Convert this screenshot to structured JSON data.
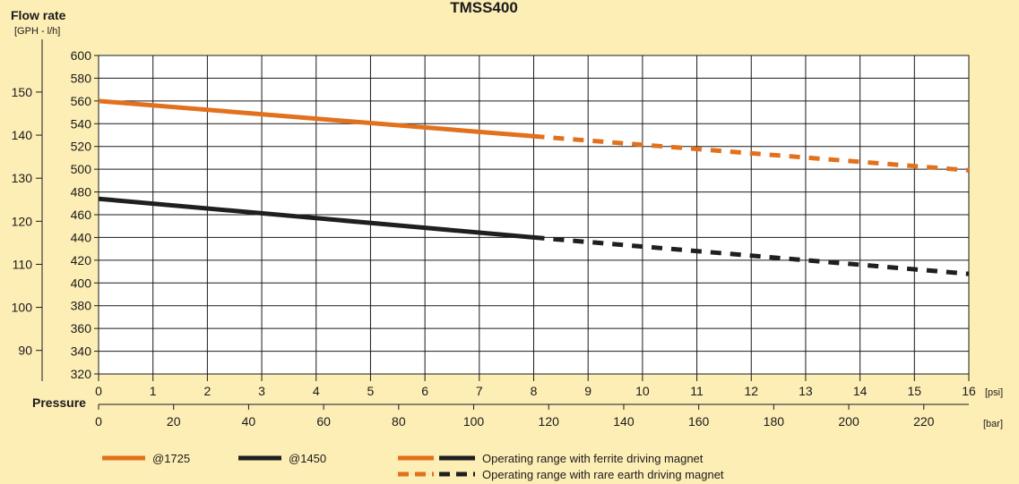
{
  "chart_data": {
    "type": "line",
    "title": "TMSS400",
    "y_label": "Flow rate",
    "y_units": "[GPH - l/h]",
    "x_label": "Pressure",
    "x_units_psi": "[psi]",
    "x_units_bar": "[bar]",
    "x_psi_ticks": [
      "0",
      "1",
      "2",
      "3",
      "4",
      "5",
      "6",
      "7",
      "8",
      "9",
      "10",
      "11",
      "12",
      "13",
      "14",
      "15",
      "16"
    ],
    "x_bar_ticks": [
      "0",
      "20",
      "40",
      "60",
      "80",
      "100",
      "120",
      "140",
      "160",
      "180",
      "200",
      "220"
    ],
    "y_lh_ticks": [
      "320",
      "340",
      "360",
      "380",
      "400",
      "420",
      "440",
      "460",
      "480",
      "500",
      "520",
      "540",
      "560",
      "580",
      "600"
    ],
    "y_gph_ticks": [
      "90",
      "100",
      "110",
      "120",
      "130",
      "140",
      "150"
    ],
    "x_range_psi": [
      0,
      16
    ],
    "y_range_lh": [
      320,
      600
    ],
    "grid": true,
    "series": [
      {
        "name": "@1725",
        "color": "#e2711d",
        "points": [
          [
            0,
            560
          ],
          [
            8,
            529
          ],
          [
            16,
            499
          ]
        ],
        "solid_until_psi": 8
      },
      {
        "name": "@1450",
        "color": "#1f1f1f",
        "points": [
          [
            0,
            474
          ],
          [
            8,
            440
          ],
          [
            16,
            408
          ]
        ],
        "solid_until_psi": 8
      }
    ],
    "legend": {
      "ferrite_label": "Operating range with ferrite driving magnet",
      "rare_earth_label": "Operating range with rare earth driving magnet"
    }
  }
}
